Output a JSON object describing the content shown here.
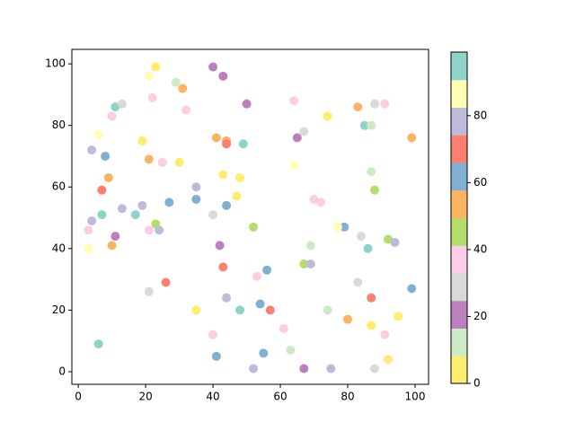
{
  "chart_data": {
    "type": "scatter",
    "x": [
      23,
      21,
      29,
      31,
      40,
      43,
      11,
      13,
      10,
      22,
      32,
      50,
      64,
      83,
      91,
      88,
      74,
      85,
      87,
      67,
      65,
      99,
      41,
      44,
      44,
      49,
      6,
      4,
      8,
      19,
      21,
      25,
      30,
      64,
      87,
      9,
      43,
      48,
      35,
      7,
      88,
      47,
      35,
      70,
      72,
      27,
      19,
      13,
      44,
      7,
      17,
      40,
      4,
      23,
      52,
      79,
      77,
      3,
      21,
      24,
      84,
      92,
      94,
      11,
      42,
      69,
      86,
      3,
      10,
      67,
      69,
      43,
      56,
      53,
      83,
      26,
      99,
      21,
      87,
      44,
      54,
      35,
      48,
      57,
      74,
      80,
      95,
      61,
      87,
      91,
      40,
      6,
      63,
      55,
      41,
      92,
      52,
      67,
      75,
      88
    ],
    "y": [
      99,
      96,
      94,
      92,
      99,
      96,
      86,
      87,
      83,
      89,
      85,
      87,
      88,
      86,
      87,
      87,
      83,
      80,
      80,
      78,
      76,
      76,
      76,
      75,
      74,
      74,
      77,
      72,
      70,
      75,
      69,
      68,
      68,
      67,
      65,
      63,
      64,
      63,
      60,
      59,
      59,
      57,
      56,
      56,
      55,
      55,
      54,
      53,
      54,
      51,
      51,
      51,
      49,
      48,
      47,
      47,
      47,
      46,
      46,
      46,
      44,
      43,
      42,
      44,
      41,
      41,
      40,
      40,
      41,
      35,
      35,
      34,
      33,
      31,
      29,
      29,
      27,
      26,
      24,
      24,
      22,
      20,
      20,
      20,
      20,
      17,
      18,
      14,
      15,
      12,
      12,
      9,
      7,
      6,
      5,
      4,
      1,
      1,
      1,
      1
    ],
    "c": [
      4,
      87,
      12,
      54,
      21,
      21,
      95,
      29,
      37,
      37,
      37,
      21,
      37,
      54,
      37,
      29,
      4,
      95,
      12,
      29,
      21,
      54,
      54,
      54,
      70,
      95,
      87,
      78,
      62,
      4,
      54,
      37,
      4,
      87,
      12,
      54,
      4,
      4,
      78,
      70,
      45,
      4,
      62,
      37,
      37,
      62,
      78,
      78,
      62,
      95,
      95,
      29,
      78,
      45,
      45,
      62,
      87,
      37,
      37,
      78,
      29,
      45,
      78,
      21,
      21,
      12,
      95,
      87,
      54,
      45,
      78,
      70,
      62,
      37,
      29,
      70,
      62,
      29,
      70,
      78,
      62,
      4,
      95,
      70,
      12,
      54,
      4,
      37,
      4,
      37,
      37,
      95,
      12,
      62,
      62,
      4,
      78,
      21,
      78,
      29
    ],
    "colormap": [
      "#ffed6f",
      "#ccebc5",
      "#bc80bd",
      "#d9d9d9",
      "#fccde5",
      "#b3de69",
      "#fdb462",
      "#80b1d3",
      "#fb8072",
      "#bebada",
      "#ffffb3",
      "#8dd3c7"
    ],
    "clim": [
      0,
      99
    ],
    "colorbar_ticks": [
      0,
      20,
      40,
      60,
      80
    ],
    "xlim": [
      -1.9,
      104
    ],
    "ylim": [
      -4.1,
      104.7
    ],
    "xticks": [
      0,
      20,
      40,
      60,
      80,
      100
    ],
    "yticks": [
      0,
      20,
      40,
      60,
      80,
      100
    ]
  }
}
